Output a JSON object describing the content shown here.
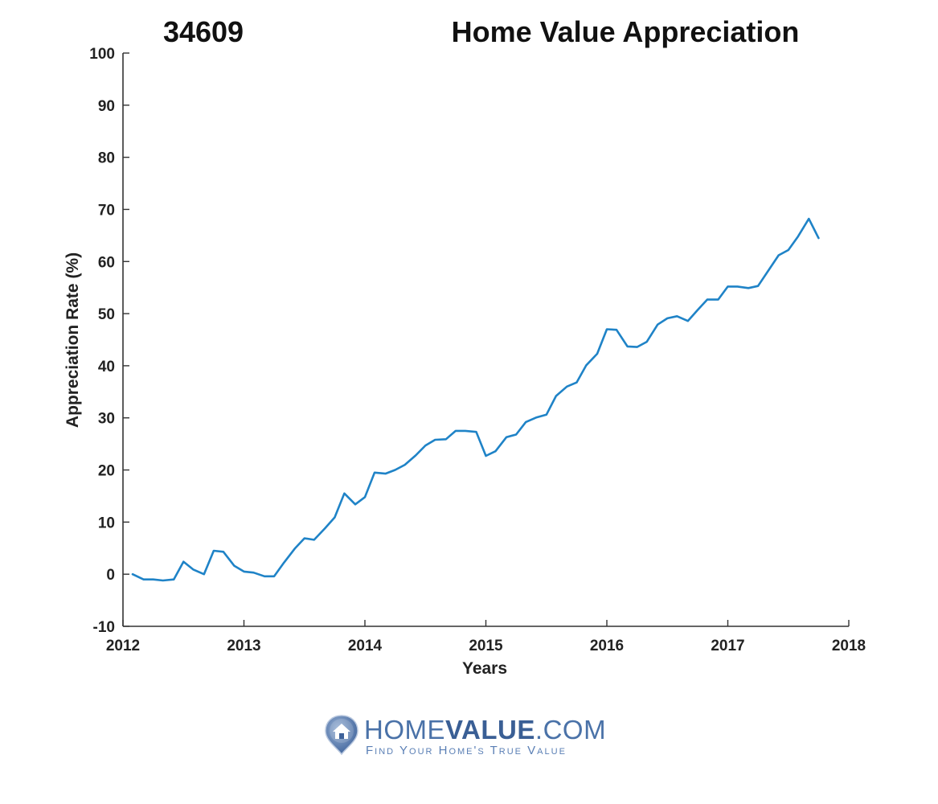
{
  "header": {
    "zip_label": "34609",
    "title": "Home Value Appreciation"
  },
  "logo": {
    "brand_light_1": "HOME",
    "brand_bold": "VALUE",
    "brand_light_2": ".COM",
    "tagline": "Find Your Home's True Value"
  },
  "colors": {
    "series": "#1f83c7",
    "axis": "#333333",
    "logo_blue": "#4a72a8"
  },
  "chart_data": {
    "type": "line",
    "title": "Home Value Appreciation",
    "xlabel": "Years",
    "ylabel": "Appreciation Rate (%)",
    "xlim": [
      2012,
      2018
    ],
    "ylim": [
      -10,
      100
    ],
    "xticks": [
      2012,
      2013,
      2014,
      2015,
      2016,
      2017,
      2018
    ],
    "yticks": [
      -10,
      0,
      10,
      20,
      30,
      40,
      50,
      60,
      70,
      80,
      90,
      100
    ],
    "grid": false,
    "series": [
      {
        "x": [
          2012.08,
          2012.17,
          2012.25,
          2012.33,
          2012.42,
          2012.5,
          2012.58,
          2012.67,
          2012.75,
          2012.83,
          2012.92,
          2013.0,
          2013.08,
          2013.17,
          2013.25,
          2013.33,
          2013.42,
          2013.5,
          2013.58,
          2013.67,
          2013.75,
          2013.83,
          2013.92,
          2014.0,
          2014.08,
          2014.17,
          2014.25,
          2014.33,
          2014.42,
          2014.5,
          2014.58,
          2014.67,
          2014.75,
          2014.83,
          2014.92,
          2015.0,
          2015.08,
          2015.17,
          2015.25,
          2015.33,
          2015.42,
          2015.5,
          2015.58,
          2015.67,
          2015.75,
          2015.83,
          2015.92,
          2016.0,
          2016.08,
          2016.17,
          2016.25,
          2016.33,
          2016.42,
          2016.5,
          2016.58,
          2016.67,
          2016.75,
          2016.83,
          2016.92,
          2017.0,
          2017.08,
          2017.17,
          2017.25,
          2017.33,
          2017.42,
          2017.5,
          2017.58,
          2017.67,
          2017.75
        ],
        "values": [
          0.0,
          -1.0,
          -1.0,
          -1.2,
          -1.0,
          2.4,
          0.9,
          0.0,
          4.5,
          4.3,
          1.6,
          0.5,
          0.3,
          -0.4,
          -0.4,
          2.2,
          4.9,
          6.9,
          6.6,
          8.8,
          10.9,
          15.5,
          13.4,
          14.8,
          19.5,
          19.3,
          20.0,
          21.0,
          22.8,
          24.7,
          25.8,
          25.9,
          27.5,
          27.5,
          27.3,
          22.7,
          23.6,
          26.3,
          26.8,
          29.2,
          30.1,
          30.6,
          34.2,
          36.0,
          36.8,
          40.1,
          42.3,
          47.0,
          46.9,
          43.7,
          43.6,
          44.6,
          47.9,
          49.1,
          49.5,
          48.6,
          50.7,
          52.7,
          52.7,
          55.2,
          55.2,
          54.9,
          55.3,
          58.1,
          61.2,
          62.2,
          64.8,
          68.2,
          64.5
        ]
      }
    ]
  }
}
